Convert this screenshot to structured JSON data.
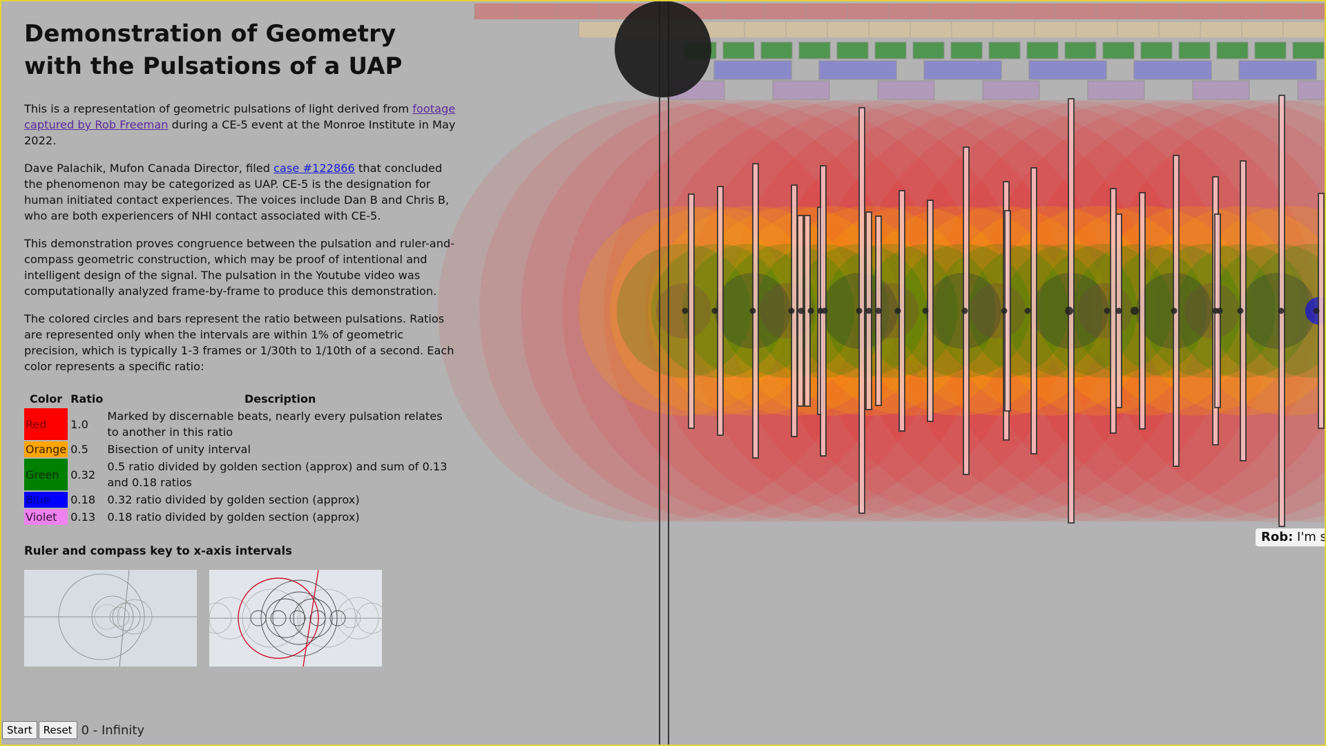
{
  "title": "Demonstration of Geometry with the Pulsations of a UAP",
  "intro": {
    "before": "This is a representation of geometric pulsations of light derived from ",
    "link": "footage captured by Rob Freeman",
    "after": " during a CE-5 event at the Monroe Institute in May 2022."
  },
  "para2": {
    "before": "Dave Palachik, Mufon Canada Director, filed ",
    "link": "case #122866",
    "after": " that concluded the phenomenon may be categorized as UAP. CE-5 is the designation for human initiated contact experiences. The voices include Dan B and Chris B, who are both experiencers of NHI contact associated with CE-5."
  },
  "para3": "This demonstration proves congruence between the pulsation and ruler-and-compass geometric construction, which may be proof of intentional and intelligent design of the signal. The pulsation in the Youtube video was computationally analyzed frame-by-frame to produce this demonstration.",
  "para4": "The colored circles and bars represent the ratio between pulsations. Ratios are represented only when the intervals are within 1% of geometric precision, which is typically 1-3 frames or 1/30th to 1/10th of a second. Each color represents a specific ratio:",
  "table": {
    "headers": {
      "color": "Color",
      "ratio": "Ratio",
      "description": "Description"
    },
    "rows": [
      {
        "name": "Red",
        "color": "#ff0000",
        "text_color": "#7a0000",
        "ratio": "1.0",
        "description": "Marked by discernable beats, nearly every pulsation relates to another in this ratio"
      },
      {
        "name": "Orange",
        "color": "#ffa500",
        "text_color": "#3a2000",
        "ratio": "0.5",
        "description": "Bisection of unity interval"
      },
      {
        "name": "Green",
        "color": "#008000",
        "text_color": "#0a2a0a",
        "ratio": "0.32",
        "description": "0.5 ratio divided by golden section (approx) and sum of 0.13 and 0.18 ratios"
      },
      {
        "name": "Blue",
        "color": "#0000ff",
        "text_color": "#00007a",
        "ratio": "0.18",
        "description": "0.32 ratio divided by golden section (approx)"
      },
      {
        "name": "Violet",
        "color": "#ee82ee",
        "text_color": "#3a103a",
        "ratio": "0.13",
        "description": "0.18 ratio divided by golden section (approx)"
      }
    ]
  },
  "key_heading": "Ruler and compass key to x-axis intervals",
  "controls": {
    "start": "Start",
    "reset": "Reset",
    "range": "0 - Infinity"
  },
  "caption": {
    "speaker": "Rob:",
    "text": "I'm st"
  },
  "colors": {
    "background": "#b3b3b3",
    "frame": "#e6d23a",
    "red": "#ff0000",
    "orange": "#ffa500",
    "green": "#008000",
    "blue": "#0000ff",
    "violet": "#ee82ee",
    "bar_fill": "#f7c4c4"
  },
  "icons": [
    "pulse-indicator",
    "playhead-line"
  ]
}
